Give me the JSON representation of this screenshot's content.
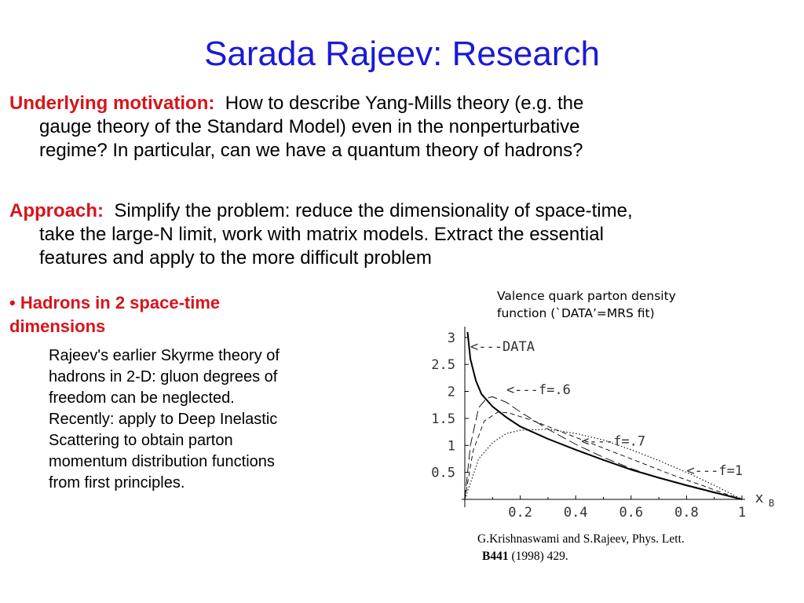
{
  "slide": {
    "title": "Sarada Rajeev: Research",
    "motivation": {
      "label": "Underlying motivation:",
      "line1": "How to describe Yang-Mills theory (e.g. the",
      "line2": "gauge theory of the Standard Model) even in the nonperturbative",
      "line3": "regime?  In particular, can we have a quantum theory of hadrons?"
    },
    "approach": {
      "label": "Approach:",
      "line1": "Simplify the problem:  reduce the dimensionality of space-time,",
      "line2": "take the large-N limit, work with matrix models.  Extract the essential",
      "line3": "features and apply to the more difficult problem"
    },
    "bullet": {
      "marker": "•",
      "line1": "Hadrons in 2 space-time",
      "line2": "dimensions"
    },
    "bullet_body": [
      "Rajeev's earlier Skyrme theory of",
      "hadrons in 2-D:  gluon degrees of",
      "freedom can be neglected.",
      "Recently:  apply to Deep Inelastic",
      "Scattering to obtain parton",
      "momentum distribution functions",
      "from first principles."
    ],
    "caption": {
      "line1": "Valence quark parton density",
      "line2": "function (`DATA’=MRS fit)"
    },
    "reference": {
      "line1": "G.Krishnaswami and S.Rajeev, Phys. Lett.",
      "volume": "B441",
      "rest": " (1998) 429."
    }
  },
  "chart_data": {
    "type": "line",
    "title": "",
    "xlabel": "x",
    "xlabel_sub": "B",
    "ylabel": "",
    "xlim": [
      0,
      1
    ],
    "ylim": [
      0,
      3.2
    ],
    "x_ticks": [
      "0.2",
      "0.4",
      "0.6",
      "0.8",
      "1"
    ],
    "y_ticks": [
      "0.5",
      "1",
      "1.5",
      "2",
      "2.5",
      "3"
    ],
    "annotations": [
      "<---DATA",
      "<---f=.6",
      "<---f=.7",
      "<---f=1"
    ],
    "series": [
      {
        "name": "DATA",
        "style": "solid",
        "points": [
          [
            0.01,
            3.1
          ],
          [
            0.02,
            2.6
          ],
          [
            0.04,
            2.2
          ],
          [
            0.06,
            1.95
          ],
          [
            0.1,
            1.72
          ],
          [
            0.15,
            1.52
          ],
          [
            0.2,
            1.35
          ],
          [
            0.3,
            1.12
          ],
          [
            0.4,
            0.92
          ],
          [
            0.5,
            0.73
          ],
          [
            0.6,
            0.55
          ],
          [
            0.7,
            0.4
          ],
          [
            0.8,
            0.26
          ],
          [
            0.9,
            0.13
          ],
          [
            0.97,
            0.04
          ],
          [
            1.0,
            0.0
          ]
        ]
      },
      {
        "name": "f=.6",
        "style": "dashed-long",
        "points": [
          [
            0.0,
            0.0
          ],
          [
            0.02,
            1.0
          ],
          [
            0.05,
            1.7
          ],
          [
            0.08,
            1.88
          ],
          [
            0.1,
            1.9
          ],
          [
            0.15,
            1.8
          ],
          [
            0.2,
            1.62
          ],
          [
            0.3,
            1.3
          ],
          [
            0.4,
            1.02
          ],
          [
            0.5,
            0.78
          ],
          [
            0.6,
            0.57
          ],
          [
            0.7,
            0.4
          ],
          [
            0.8,
            0.25
          ],
          [
            0.9,
            0.12
          ],
          [
            1.0,
            0.0
          ]
        ]
      },
      {
        "name": "f=.7",
        "style": "dashed-short",
        "points": [
          [
            0.0,
            0.0
          ],
          [
            0.03,
            0.9
          ],
          [
            0.07,
            1.45
          ],
          [
            0.12,
            1.62
          ],
          [
            0.16,
            1.6
          ],
          [
            0.25,
            1.45
          ],
          [
            0.35,
            1.25
          ],
          [
            0.45,
            1.05
          ],
          [
            0.55,
            0.85
          ],
          [
            0.65,
            0.65
          ],
          [
            0.75,
            0.45
          ],
          [
            0.85,
            0.27
          ],
          [
            0.93,
            0.12
          ],
          [
            1.0,
            0.0
          ]
        ]
      },
      {
        "name": "f=1",
        "style": "dotted",
        "points": [
          [
            0.0,
            0.0
          ],
          [
            0.05,
            0.75
          ],
          [
            0.1,
            1.05
          ],
          [
            0.15,
            1.22
          ],
          [
            0.2,
            1.28
          ],
          [
            0.3,
            1.3
          ],
          [
            0.4,
            1.22
          ],
          [
            0.5,
            1.1
          ],
          [
            0.6,
            0.92
          ],
          [
            0.7,
            0.72
          ],
          [
            0.8,
            0.5
          ],
          [
            0.9,
            0.26
          ],
          [
            1.0,
            0.0
          ]
        ]
      }
    ]
  }
}
